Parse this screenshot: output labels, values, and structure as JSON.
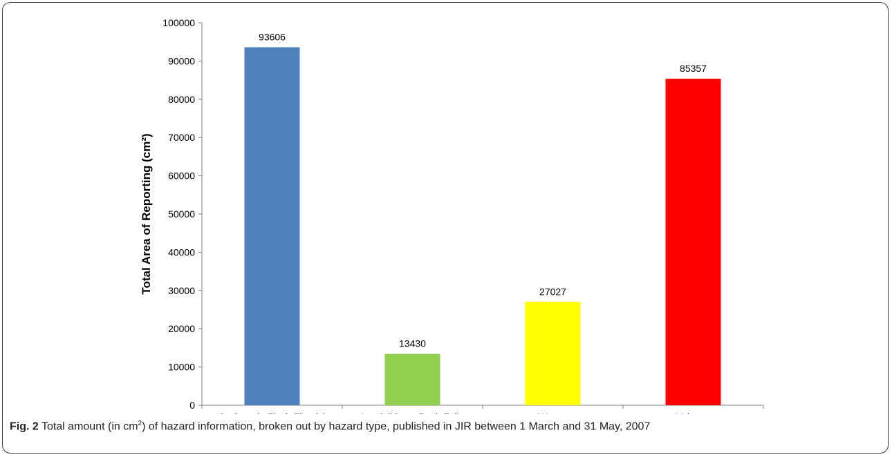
{
  "chart_data": {
    "type": "bar",
    "categories": [
      "Cyclone (+ Flash Floods)",
      "Landslides + Rock Falls",
      "Waves",
      "Volcano"
    ],
    "values": [
      93606,
      13430,
      27027,
      85357
    ],
    "colors": [
      "#4f81bd",
      "#92d050",
      "#ffff00",
      "#ff0000"
    ],
    "ylabel": "Total Area of Reporting (cm²)",
    "xlabel": "",
    "ylim": [
      0,
      100000
    ],
    "yticks": [
      0,
      10000,
      20000,
      30000,
      40000,
      50000,
      60000,
      70000,
      80000,
      90000,
      100000
    ],
    "grid": false,
    "legend": "none"
  },
  "caption": {
    "label": "Fig. 2",
    "text_pre": " Total amount (in cm",
    "sup": "2",
    "text_post": ") of hazard information, broken out by hazard type, published in JIR between 1 March and 31 May, 2007"
  }
}
